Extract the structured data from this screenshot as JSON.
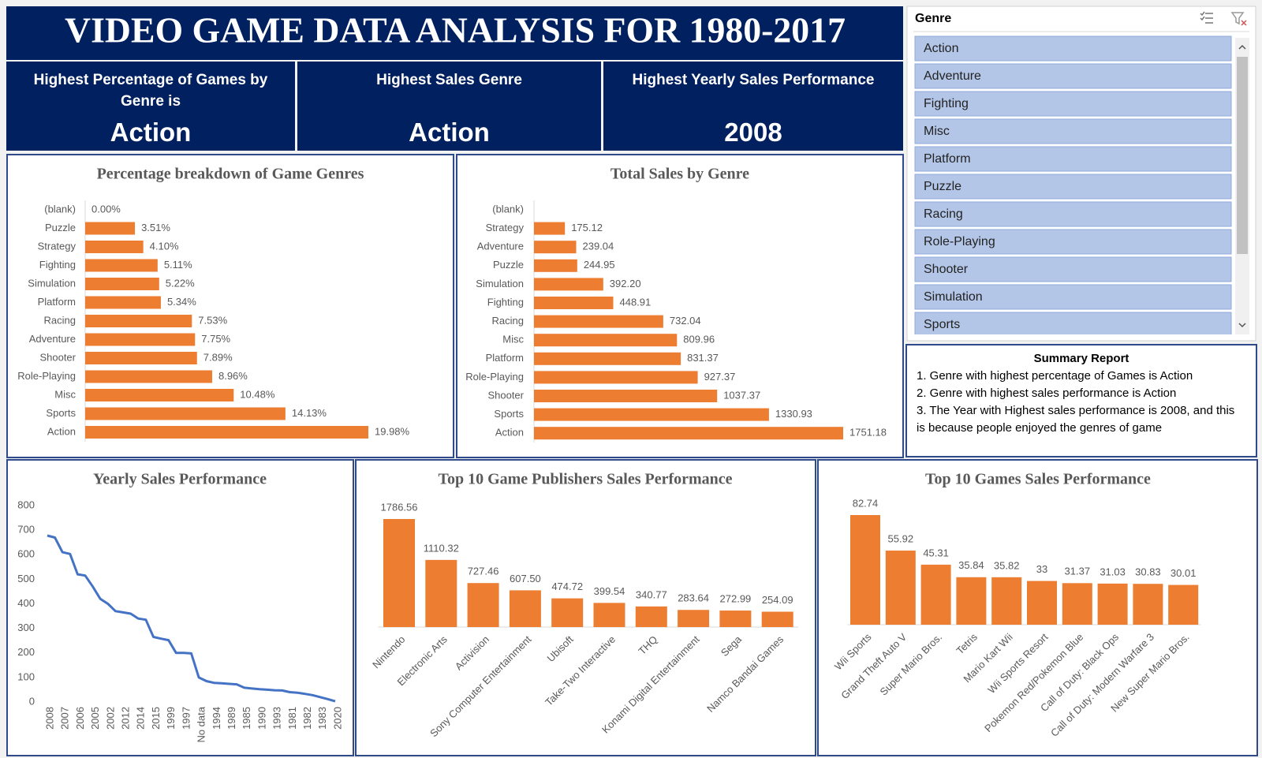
{
  "header": {
    "title": "VIDEO GAME DATA ANALYSIS FOR 1980-2017"
  },
  "kpis": [
    {
      "label": "Highest Percentage of Games by Genre is",
      "value": "Action"
    },
    {
      "label": "Highest Sales Genre",
      "value": "Action"
    },
    {
      "label": "Highest Yearly Sales Performance",
      "value": "2008"
    }
  ],
  "slicer": {
    "title": "Genre",
    "items": [
      "Action",
      "Adventure",
      "Fighting",
      "Misc",
      "Platform",
      "Puzzle",
      "Racing",
      "Role-Playing",
      "Shooter",
      "Simulation",
      "Sports"
    ]
  },
  "summary": {
    "title": "Summary Report",
    "lines": [
      "1. Genre with highest percentage of Games is Action",
      "2. Genre with highest sales performance is Action",
      "3. The Year with Highest sales performance is 2008, and this is because people enjoyed the genres of game"
    ]
  },
  "chart_data": [
    {
      "type": "bar",
      "orientation": "horizontal",
      "title": "Percentage breakdown  of Game Genres",
      "color": "#ed7d31",
      "categories": [
        "(blank)",
        "Puzzle",
        "Strategy",
        "Fighting",
        "Simulation",
        "Platform",
        "Racing",
        "Adventure",
        "Shooter",
        "Role-Playing",
        "Misc",
        "Sports",
        "Action"
      ],
      "values": [
        0,
        3.51,
        4.1,
        5.11,
        5.22,
        5.34,
        7.53,
        7.75,
        7.89,
        8.96,
        10.48,
        14.13,
        19.98
      ],
      "value_labels": [
        "0.00%",
        "3.51%",
        "4.10%",
        "5.11%",
        "5.22%",
        "5.34%",
        "7.53%",
        "7.75%",
        "7.89%",
        "8.96%",
        "10.48%",
        "14.13%",
        "19.98%"
      ]
    },
    {
      "type": "bar",
      "orientation": "horizontal",
      "title": "Total Sales by Genre",
      "color": "#ed7d31",
      "categories": [
        "(blank)",
        "Strategy",
        "Adventure",
        "Puzzle",
        "Simulation",
        "Fighting",
        "Racing",
        "Misc",
        "Platform",
        "Role-Playing",
        "Shooter",
        "Sports",
        "Action"
      ],
      "values": [
        null,
        175.12,
        239.04,
        244.95,
        392.2,
        448.91,
        732.04,
        809.96,
        831.37,
        927.37,
        1037.37,
        1330.93,
        1751.18
      ],
      "value_labels": [
        null,
        "175.12",
        "239.04",
        "244.95",
        "392.20",
        "448.91",
        "732.04",
        "809.96",
        "831.37",
        "927.37",
        "1037.37",
        "1330.93",
        "1751.18"
      ]
    },
    {
      "type": "line",
      "title": "Yearly Sales Performance",
      "color": "#4472c4",
      "grid": false,
      "categories": [
        "2008",
        null,
        "2007",
        null,
        "2006",
        null,
        "2005",
        null,
        "2002",
        null,
        "2012",
        null,
        "2014",
        null,
        "2015",
        null,
        "1999",
        null,
        "1997",
        null,
        "No data",
        null,
        "1994",
        null,
        "1989",
        null,
        "1985",
        null,
        "1990",
        null,
        "1993",
        null,
        "1981",
        null,
        "1982",
        null,
        "1983",
        null,
        "2020"
      ],
      "values": [
        678,
        670,
        610,
        603,
        520,
        515,
        470,
        420,
        400,
        370,
        365,
        360,
        340,
        335,
        265,
        258,
        252,
        200,
        200,
        198,
        100,
        85,
        78,
        76,
        74,
        72,
        58,
        55,
        52,
        50,
        48,
        47,
        40,
        38,
        33,
        28,
        20,
        12,
        3
      ],
      "ylim": [
        0,
        800
      ],
      "yticks": [
        0,
        100,
        200,
        300,
        400,
        500,
        600,
        700,
        800
      ]
    },
    {
      "type": "bar",
      "orientation": "vertical",
      "title": "Top 10 Game Publishers Sales Performance",
      "color": "#ed7d31",
      "categories": [
        "Nintendo",
        "Electronic Arts",
        "Activision",
        "Sony Computer Entertainment",
        "Ubisoft",
        "Take-Two Interactive",
        "THQ",
        "Konami Digital Entertainment",
        "Sega",
        "Namco Bandai Games"
      ],
      "values": [
        1786.56,
        1110.32,
        727.46,
        607.5,
        474.72,
        399.54,
        340.77,
        283.64,
        272.99,
        254.09
      ],
      "value_labels": [
        "1786.56",
        "1110.32",
        "727.46",
        "607.50",
        "474.72",
        "399.54",
        "340.77",
        "283.64",
        "272.99",
        "254.09"
      ]
    },
    {
      "type": "bar",
      "orientation": "vertical",
      "title": "Top 10 Games Sales Performance",
      "color": "#ed7d31",
      "categories": [
        "Wii Sports",
        "Grand Theft Auto V",
        "Super Mario Bros.",
        "Tetris",
        "Mario Kart Wii",
        "Wii Sports Resort",
        "Pokemon Red/Pokemon Blue",
        "Call of Duty: Black Ops",
        "Call of Duty: Modern Warfare 3",
        "New Super Mario Bros."
      ],
      "values": [
        82.74,
        55.92,
        45.31,
        35.84,
        35.82,
        33,
        31.37,
        31.03,
        30.83,
        30.01
      ]
    }
  ]
}
